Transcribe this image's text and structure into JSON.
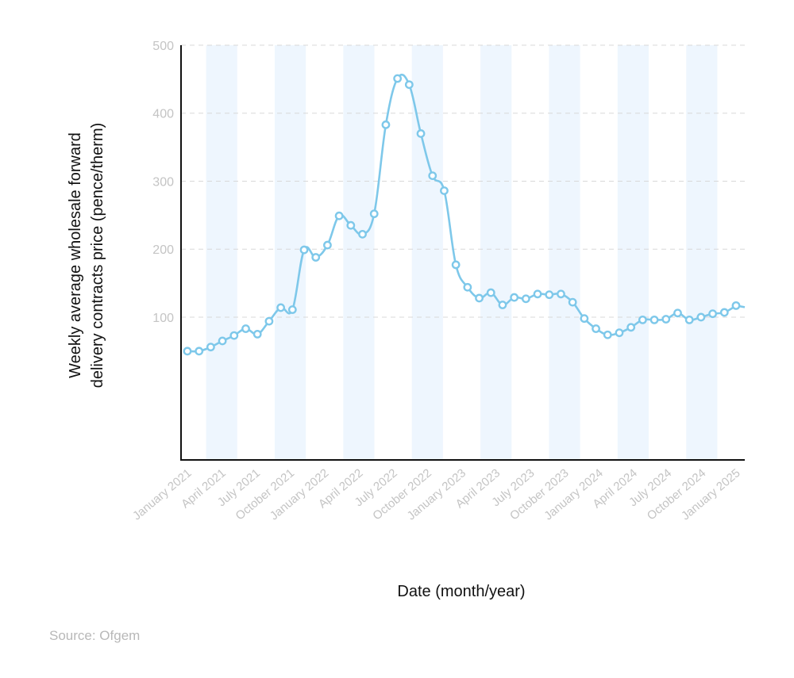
{
  "source": "Source: Ofgem",
  "colors": {
    "line": "#7ec8ea",
    "band": "#eef6fe",
    "grid": "#d8d8d8",
    "axis": "#111111",
    "tick": "#c4c4c4"
  },
  "chart_data": {
    "type": "line",
    "title": "",
    "xlabel": "Date (month/year)",
    "ylabel_lines": [
      "Weekly average wholesale forward",
      "delivery contracts price (pence/therm)"
    ],
    "x_ticks": [
      "January 2021",
      "April 2021",
      "July 2021",
      "October 2021",
      "January 2022",
      "April 2022",
      "July 2022",
      "October 2022",
      "January 2023",
      "April 2023",
      "July 2023",
      "October 2023",
      "January 2024",
      "April 2024",
      "July 2024",
      "October 2024",
      "January 2025"
    ],
    "y_ticks": [
      100,
      200,
      300,
      400,
      500
    ],
    "ylim": [
      -110,
      500
    ],
    "grid": "horizontal dashed",
    "legend": "none",
    "series": [
      {
        "values": [
          50,
          50,
          56,
          65,
          73,
          83,
          75,
          94,
          114,
          111,
          199,
          188,
          206,
          249,
          235,
          222,
          252,
          383,
          451,
          442,
          370,
          308,
          286,
          177,
          144,
          128,
          136,
          118,
          129,
          127,
          134,
          133,
          134,
          122,
          98,
          83,
          74,
          77,
          85,
          96,
          96,
          97,
          106,
          96,
          100,
          105,
          107,
          117
        ]
      }
    ]
  }
}
